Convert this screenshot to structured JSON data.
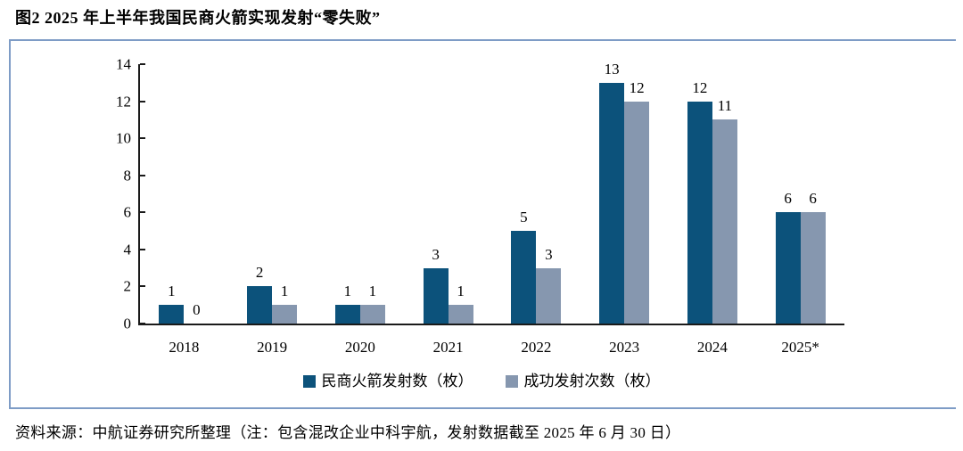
{
  "figure": {
    "title": "图2  2025 年上半年我国民商火箭实现发射“零失败”"
  },
  "source": {
    "text": "资料来源：中航证券研究所整理（注：包含混改企业中科宇航，发射数据截至 2025 年 6 月 30 日）"
  },
  "colors": {
    "series1": "#0C527B",
    "series2": "#8697AF",
    "divider": "#7E9CC6",
    "axis": "#1A1A1A"
  },
  "chart_data": {
    "type": "bar",
    "title": "图2  2025 年上半年我国民商火箭实现发射“零失败”",
    "categories": [
      "2018",
      "2019",
      "2020",
      "2021",
      "2022",
      "2023",
      "2024",
      "2025*"
    ],
    "series": [
      {
        "name": "民商火箭发射数（枚）",
        "color": "#0C527B",
        "values": [
          1,
          2,
          1,
          3,
          5,
          13,
          12,
          6
        ]
      },
      {
        "name": "成功发射次数（枚）",
        "color": "#8697AF",
        "values": [
          0,
          1,
          1,
          1,
          3,
          12,
          11,
          6
        ]
      }
    ],
    "xlabel": "",
    "ylabel": "",
    "ylim": [
      0,
      14
    ],
    "ytick_step": 2,
    "grid": false,
    "legend_position": "bottom",
    "data_labels": true
  }
}
